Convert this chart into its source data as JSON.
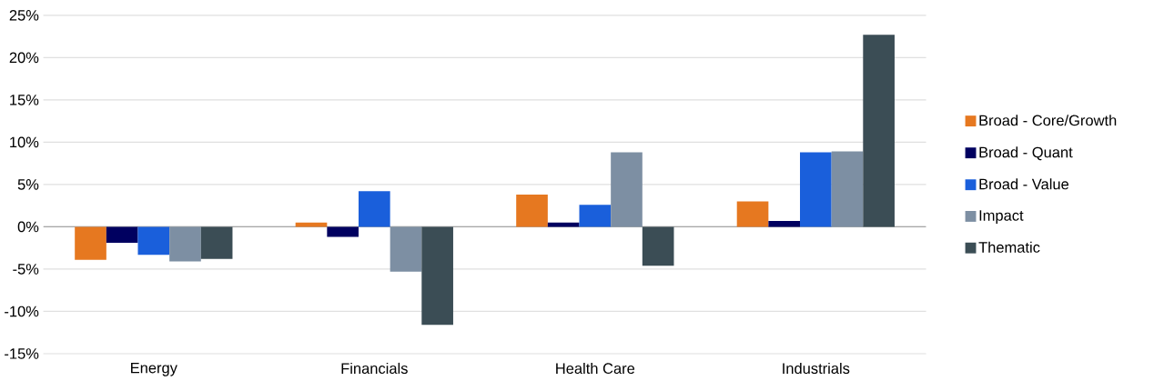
{
  "chart_data": {
    "type": "bar",
    "categories": [
      "Energy",
      "Financials",
      "Health Care",
      "Industrials"
    ],
    "series": [
      {
        "name": "Broad - Core/Growth",
        "color": "#e67820",
        "values": [
          -3.9,
          0.5,
          3.8,
          3.0
        ]
      },
      {
        "name": "Broad - Quant",
        "color": "#000060",
        "values": [
          -1.9,
          -1.2,
          0.5,
          0.7
        ]
      },
      {
        "name": "Broad - Value",
        "color": "#1a5fdb",
        "values": [
          -3.3,
          4.2,
          2.6,
          8.8
        ]
      },
      {
        "name": "Impact",
        "color": "#7d8fa3",
        "values": [
          -4.1,
          -5.3,
          8.8,
          8.9
        ]
      },
      {
        "name": "Thematic",
        "color": "#3b4d55",
        "values": [
          -3.8,
          -11.6,
          -4.6,
          22.7
        ]
      }
    ],
    "ylim": [
      -15,
      25
    ],
    "yticks": [
      {
        "value": -15,
        "label": "-15%"
      },
      {
        "value": -10,
        "label": "-10%"
      },
      {
        "value": -5,
        "label": "-5%"
      },
      {
        "value": 0,
        "label": "0%"
      },
      {
        "value": 5,
        "label": "5%"
      },
      {
        "value": 10,
        "label": "10%"
      },
      {
        "value": 15,
        "label": "15%"
      },
      {
        "value": 20,
        "label": "20%"
      },
      {
        "value": 25,
        "label": "25%"
      }
    ],
    "grid": "y",
    "legend": "right"
  }
}
